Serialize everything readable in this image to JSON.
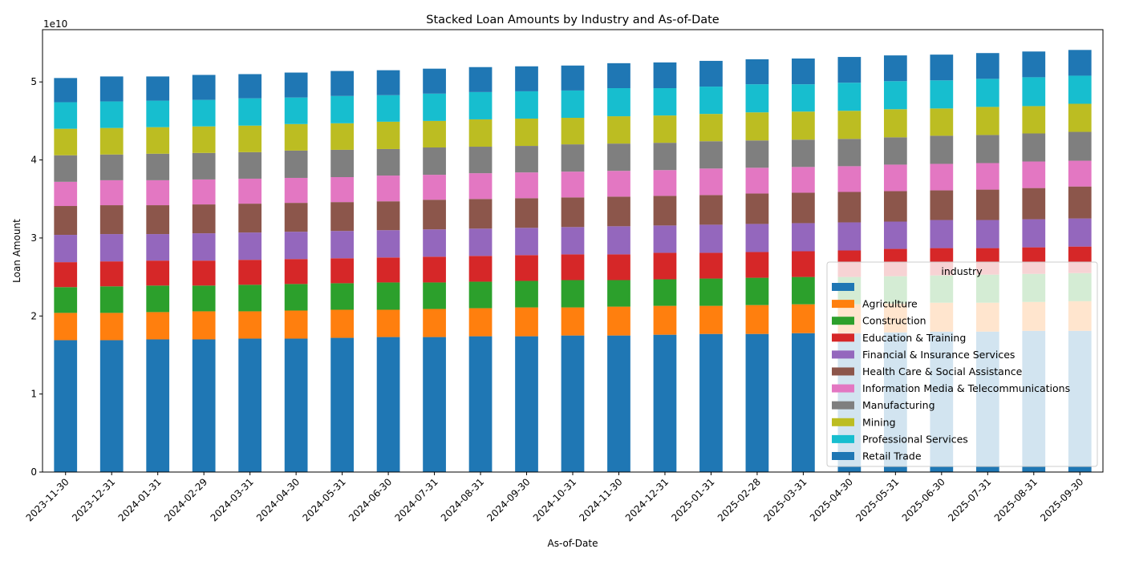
{
  "chart_data": {
    "type": "bar",
    "stacked": true,
    "title": "Stacked Loan Amounts by Industry and As-of-Date",
    "xlabel": "As-of-Date",
    "ylabel": "Loan Amount",
    "y_offset_text": "1e10",
    "ylim": [
      0,
      56.7
    ],
    "y_ticks": [
      "0",
      "1",
      "2",
      "3",
      "4",
      "5"
    ],
    "grid": false,
    "legend_title": "industry",
    "legend_placement": "lower-right",
    "categories": [
      "2023-11-30",
      "2023-12-31",
      "2024-01-31",
      "2024-02-29",
      "2024-03-31",
      "2024-04-30",
      "2024-05-31",
      "2024-06-30",
      "2024-07-31",
      "2024-08-31",
      "2024-09-30",
      "2024-10-31",
      "2024-11-30",
      "2024-12-31",
      "2025-01-31",
      "2025-02-28",
      "2025-03-31",
      "2025-04-30",
      "2025-05-31",
      "2025-06-30",
      "2025-07-31",
      "2025-08-31",
      "2025-09-30"
    ],
    "series": [
      {
        "name": "",
        "color": "#1f77b4",
        "values": [
          16.9,
          16.9,
          17.0,
          17.0,
          17.1,
          17.1,
          17.2,
          17.3,
          17.3,
          17.4,
          17.4,
          17.5,
          17.5,
          17.6,
          17.7,
          17.7,
          17.8,
          17.8,
          17.9,
          18.0,
          18.0,
          18.1,
          18.1
        ]
      },
      {
        "name": "Agriculture",
        "color": "#ff7f0e",
        "values": [
          3.5,
          3.5,
          3.5,
          3.6,
          3.5,
          3.6,
          3.6,
          3.5,
          3.6,
          3.6,
          3.7,
          3.6,
          3.7,
          3.7,
          3.6,
          3.7,
          3.7,
          3.7,
          3.7,
          3.7,
          3.7,
          3.7,
          3.8
        ]
      },
      {
        "name": "Construction",
        "color": "#2ca02c",
        "values": [
          3.3,
          3.4,
          3.4,
          3.3,
          3.4,
          3.4,
          3.4,
          3.5,
          3.4,
          3.4,
          3.4,
          3.5,
          3.4,
          3.4,
          3.5,
          3.5,
          3.5,
          3.5,
          3.5,
          3.5,
          3.6,
          3.6,
          3.6
        ]
      },
      {
        "name": "Education & Training",
        "color": "#d62728",
        "values": [
          3.2,
          3.2,
          3.2,
          3.2,
          3.2,
          3.2,
          3.2,
          3.2,
          3.3,
          3.3,
          3.3,
          3.3,
          3.3,
          3.4,
          3.3,
          3.3,
          3.3,
          3.4,
          3.5,
          3.5,
          3.4,
          3.4,
          3.4
        ]
      },
      {
        "name": "Financial & Insurance Services",
        "color": "#9467bd",
        "values": [
          3.5,
          3.5,
          3.4,
          3.5,
          3.5,
          3.5,
          3.5,
          3.5,
          3.5,
          3.5,
          3.5,
          3.5,
          3.6,
          3.5,
          3.6,
          3.6,
          3.6,
          3.6,
          3.5,
          3.6,
          3.6,
          3.6,
          3.6
        ]
      },
      {
        "name": "Health Care & Social Assistance",
        "color": "#8c564b",
        "values": [
          3.7,
          3.7,
          3.7,
          3.7,
          3.7,
          3.7,
          3.7,
          3.7,
          3.8,
          3.8,
          3.8,
          3.8,
          3.8,
          3.8,
          3.8,
          3.9,
          3.9,
          3.9,
          3.9,
          3.8,
          3.9,
          4.0,
          4.1
        ]
      },
      {
        "name": "Information Media & Telecommunications",
        "color": "#e377c2",
        "values": [
          3.1,
          3.2,
          3.2,
          3.2,
          3.2,
          3.2,
          3.2,
          3.3,
          3.2,
          3.3,
          3.3,
          3.3,
          3.3,
          3.3,
          3.4,
          3.3,
          3.3,
          3.3,
          3.4,
          3.4,
          3.4,
          3.4,
          3.3
        ]
      },
      {
        "name": "Manufacturing",
        "color": "#7f7f7f",
        "values": [
          3.4,
          3.3,
          3.4,
          3.4,
          3.4,
          3.5,
          3.5,
          3.4,
          3.5,
          3.4,
          3.4,
          3.5,
          3.5,
          3.5,
          3.5,
          3.5,
          3.5,
          3.5,
          3.5,
          3.6,
          3.6,
          3.6,
          3.7
        ]
      },
      {
        "name": "Mining",
        "color": "#bcbd22",
        "values": [
          3.4,
          3.4,
          3.4,
          3.4,
          3.4,
          3.4,
          3.4,
          3.5,
          3.4,
          3.5,
          3.5,
          3.4,
          3.5,
          3.5,
          3.5,
          3.6,
          3.6,
          3.6,
          3.6,
          3.5,
          3.6,
          3.5,
          3.6
        ]
      },
      {
        "name": "Professional Services",
        "color": "#17becf",
        "values": [
          3.4,
          3.4,
          3.4,
          3.4,
          3.5,
          3.4,
          3.5,
          3.4,
          3.5,
          3.5,
          3.5,
          3.5,
          3.6,
          3.5,
          3.5,
          3.6,
          3.5,
          3.6,
          3.6,
          3.6,
          3.6,
          3.7,
          3.6
        ]
      },
      {
        "name": "Retail Trade",
        "color": "#1f77b4",
        "values": [
          3.1,
          3.2,
          3.1,
          3.2,
          3.1,
          3.2,
          3.2,
          3.2,
          3.2,
          3.2,
          3.2,
          3.2,
          3.2,
          3.3,
          3.3,
          3.2,
          3.3,
          3.3,
          3.3,
          3.3,
          3.3,
          3.3,
          3.3
        ]
      }
    ]
  }
}
